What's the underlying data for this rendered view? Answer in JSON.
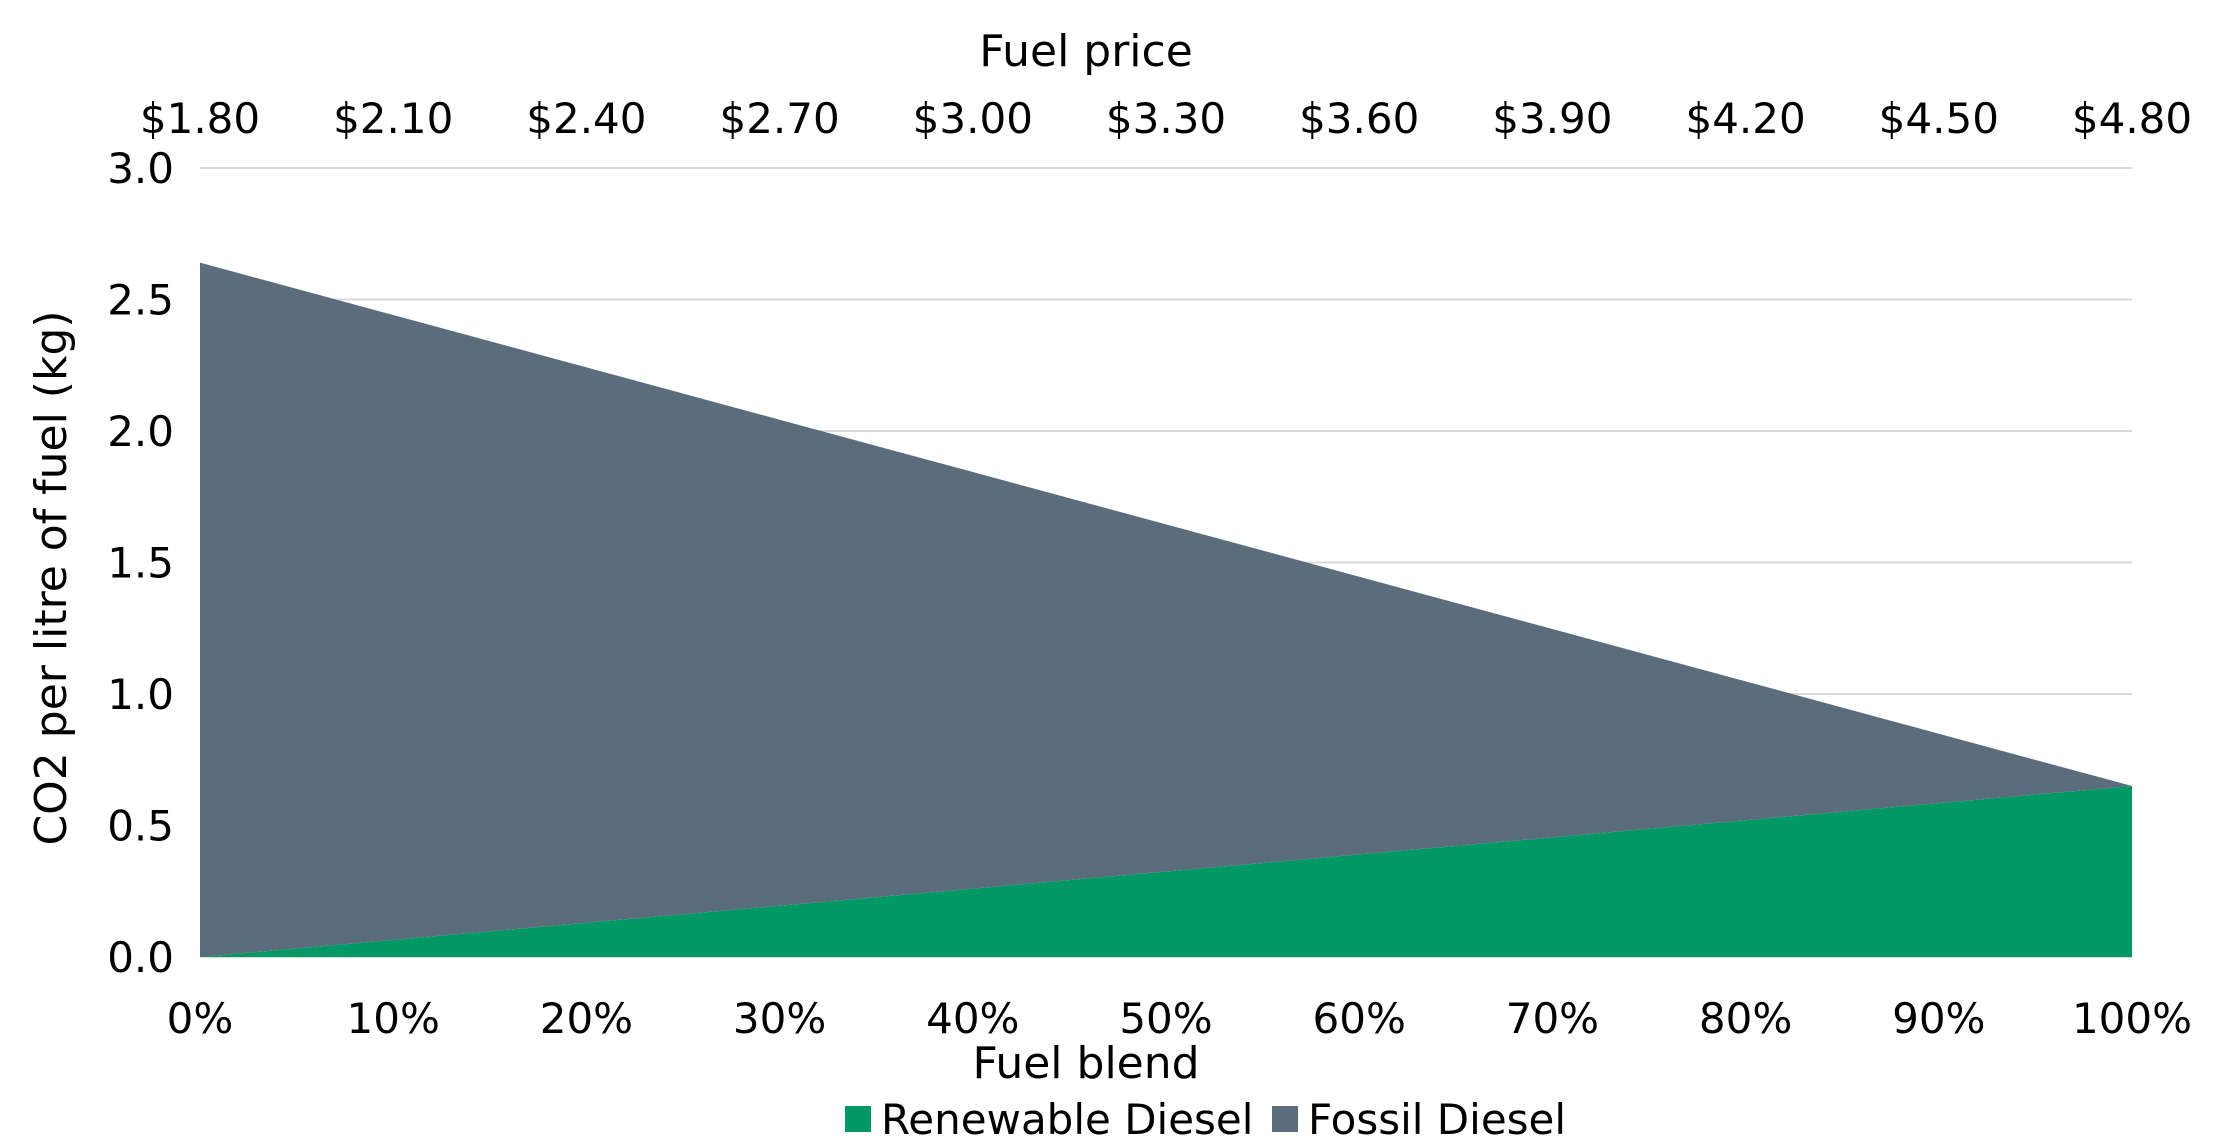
{
  "chart_data": {
    "type": "area",
    "stacked": true,
    "x": [
      0,
      10,
      20,
      30,
      40,
      50,
      60,
      70,
      80,
      90,
      100
    ],
    "x_tick_labels": [
      "0%",
      "10%",
      "20%",
      "30%",
      "40%",
      "50%",
      "60%",
      "70%",
      "80%",
      "90%",
      "100%"
    ],
    "xlabel": "Fuel blend",
    "secondary_x_label": "Fuel price",
    "secondary_x_tick_labels": [
      "$1.80",
      "$2.10",
      "$2.40",
      "$2.70",
      "$3.00",
      "$3.30",
      "$3.60",
      "$3.90",
      "$4.20",
      "$4.50",
      "$4.80"
    ],
    "ylabel": "CO2 per litre of fuel (kg)",
    "ylim": [
      0,
      3.0
    ],
    "y_ticks": [
      "0.0",
      "0.5",
      "1.0",
      "1.5",
      "2.0",
      "2.5",
      "3.0"
    ],
    "grid": true,
    "legend_position": "bottom",
    "series": [
      {
        "name": "Renewable Diesel",
        "color": "#009966",
        "values": [
          0.0,
          0.065,
          0.13,
          0.195,
          0.26,
          0.325,
          0.39,
          0.455,
          0.52,
          0.585,
          0.65
        ]
      },
      {
        "name": "Fossil Diesel",
        "color": "#5b6c7d",
        "values": [
          2.64,
          2.376,
          2.112,
          1.848,
          1.584,
          1.32,
          1.056,
          0.792,
          0.528,
          0.264,
          0.0
        ]
      }
    ]
  }
}
